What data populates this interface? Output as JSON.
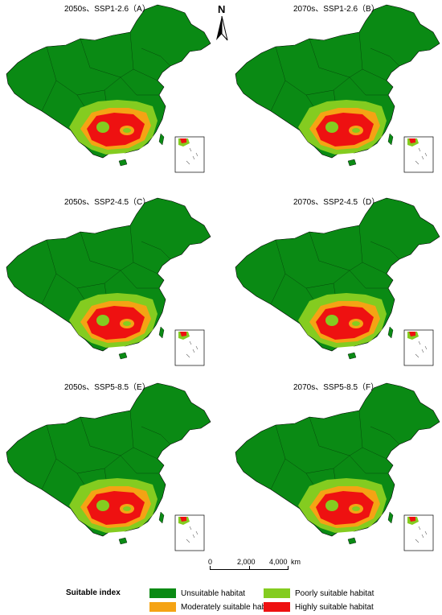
{
  "panels": [
    {
      "title": "2050s、SSP1-2.6（A）"
    },
    {
      "title": "2070s、SSP1-2.6（B）"
    },
    {
      "title": "2050s、SSP2-4.5（C）"
    },
    {
      "title": "2070s、SSP2-4.5（D）"
    },
    {
      "title": "2050s、SSP5-8.5（E）"
    },
    {
      "title": "2070s、SSP5-8.5（F）"
    }
  ],
  "north_arrow": {
    "label": "N"
  },
  "scale_bar": {
    "ticks": [
      "0",
      "2,000",
      "4,000"
    ],
    "unit": "km"
  },
  "legend": {
    "title": "Suitable index",
    "items": [
      {
        "label": "Unsuitable habitat",
        "color": "#0a8a14"
      },
      {
        "label": "Poorly suitable habitat",
        "color": "#84cc20"
      },
      {
        "label": "Moderately suitable habitat",
        "color": "#f5a314"
      },
      {
        "label": "Highly suitable habitat",
        "color": "#ee1111"
      }
    ]
  }
}
